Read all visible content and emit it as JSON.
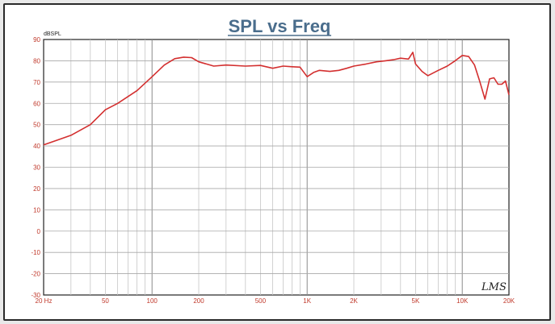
{
  "chart_data": {
    "type": "line",
    "title": "SPL vs Freq",
    "ylabel": "dBSPL",
    "xlabel": "",
    "x_scale": "log",
    "xlim": [
      20,
      20000
    ],
    "ylim": [
      -30,
      90
    ],
    "grid": true,
    "y_ticks": [
      90,
      80,
      70,
      60,
      50,
      40,
      30,
      20,
      10,
      0,
      -10,
      -20,
      -30
    ],
    "y_tick_labels": [
      "90",
      "80",
      "70",
      "60",
      "50",
      "40",
      "30",
      "20",
      "10",
      "0",
      "-10",
      "-20",
      "-30"
    ],
    "x_ticks": [
      20,
      50,
      100,
      200,
      500,
      1000,
      2000,
      5000,
      10000,
      20000
    ],
    "x_tick_labels": [
      "20 Hz",
      "50",
      "100",
      "200",
      "500",
      "1K",
      "2K",
      "5K",
      "10K",
      "20K"
    ],
    "series": [
      {
        "color": "#d32f2f",
        "x": [
          20,
          25,
          30,
          40,
          50,
          60,
          80,
          100,
          120,
          140,
          160,
          180,
          200,
          250,
          300,
          400,
          500,
          600,
          700,
          800,
          900,
          1000,
          1100,
          1200,
          1400,
          1600,
          1800,
          2000,
          2400,
          2800,
          3200,
          3600,
          4000,
          4500,
          4800,
          5000,
          5500,
          6000,
          7000,
          8000,
          9000,
          10000,
          11000,
          12000,
          13000,
          14000,
          15000,
          16000,
          17000,
          18000,
          19000,
          20000
        ],
        "y": [
          40.5,
          43,
          45,
          50,
          57,
          60,
          66,
          72.5,
          78,
          81,
          81.7,
          81.5,
          79.5,
          77.5,
          78,
          77.5,
          77.8,
          76.5,
          77.5,
          77.2,
          77,
          72.5,
          74.5,
          75.5,
          75,
          75.5,
          76.5,
          77.5,
          78.5,
          79.5,
          80,
          80.5,
          81.2,
          80.8,
          84,
          78.5,
          75,
          73,
          75.5,
          77.5,
          80,
          82.5,
          82,
          78,
          70,
          62,
          71.5,
          72,
          69,
          69,
          70.5,
          64
        ]
      }
    ],
    "annotations": [
      {
        "text": "LMS",
        "position": "bottom-right"
      }
    ]
  }
}
